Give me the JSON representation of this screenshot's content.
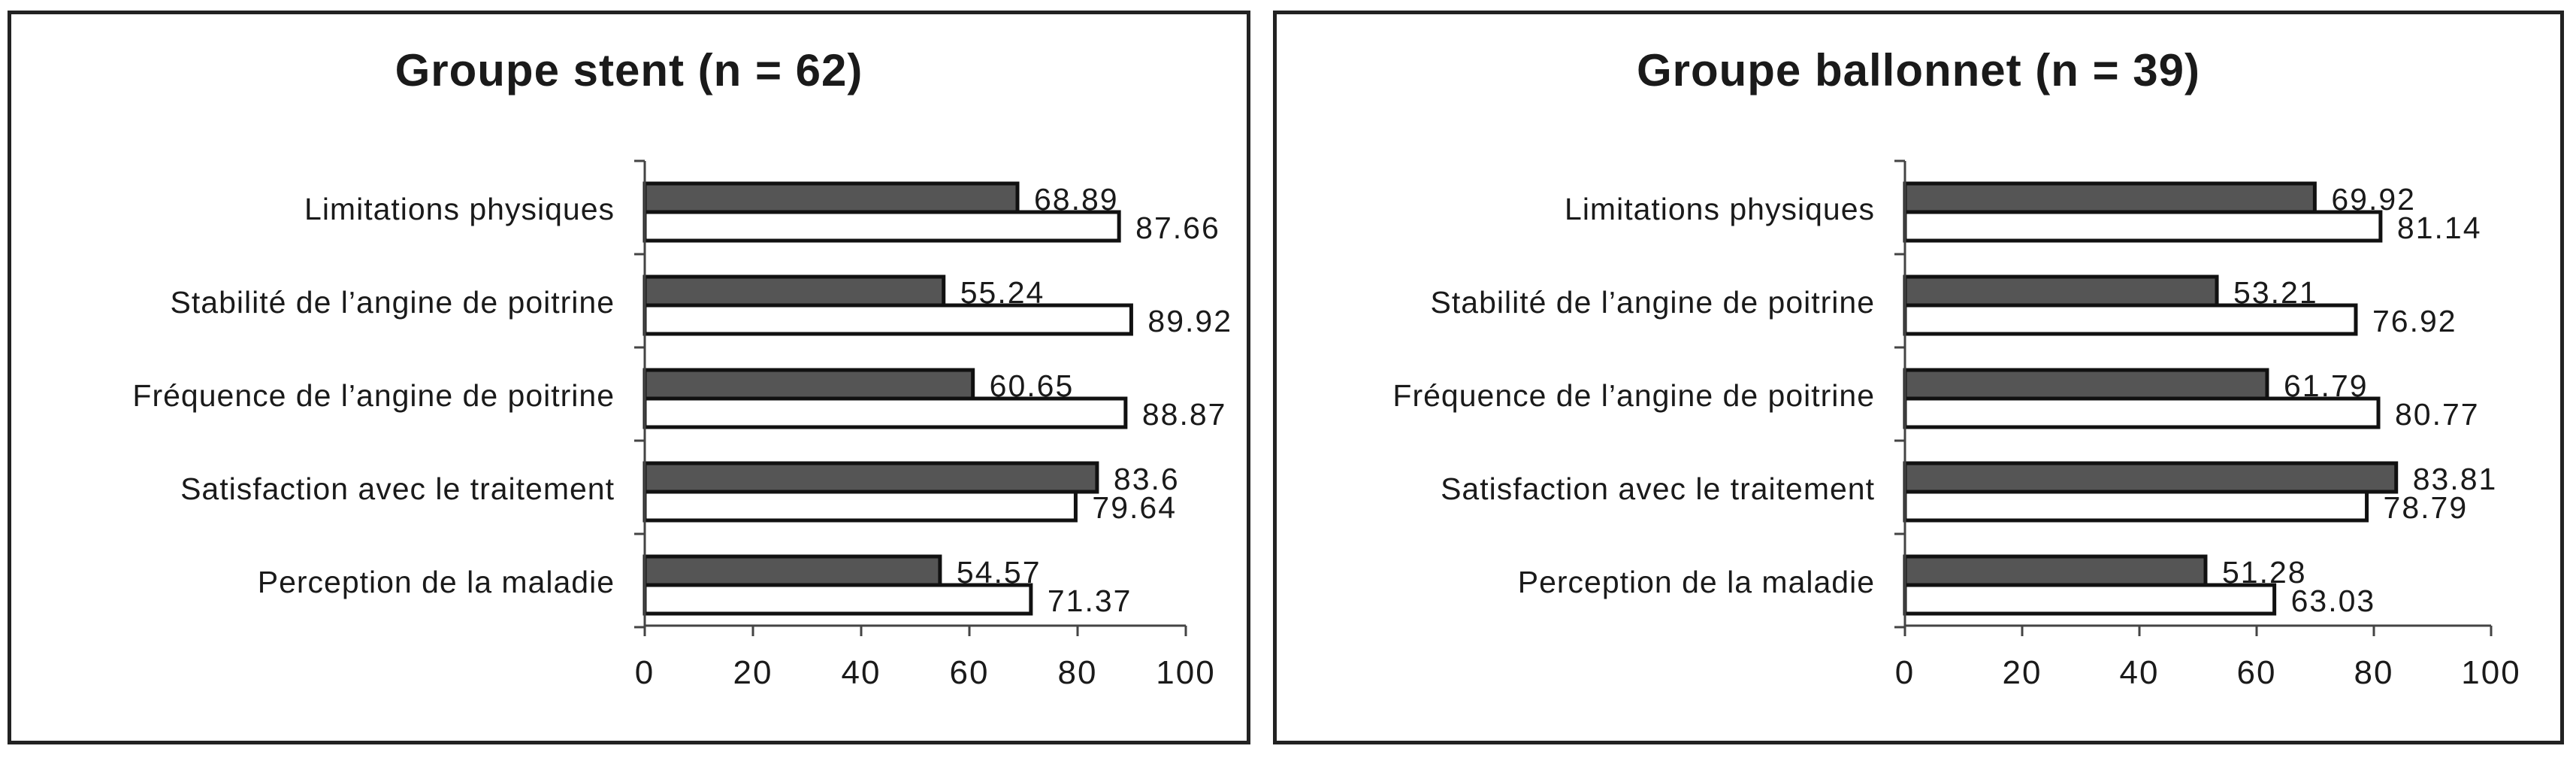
{
  "chart_data": [
    {
      "type": "bar",
      "orientation": "horizontal",
      "title": "Groupe stent (n = 62)",
      "categories": [
        "Limitations physiques",
        "Stabilité de l’angine de poitrine",
        "Fréquence de l’angine de poitrine",
        "Satisfaction avec le traitement",
        "Perception de la maladie"
      ],
      "series": [
        {
          "color": "#555555",
          "values": [
            68.89,
            55.24,
            60.65,
            83.6,
            54.57
          ]
        },
        {
          "color": "#ffffff",
          "values": [
            87.66,
            89.92,
            88.87,
            79.64,
            71.37
          ]
        }
      ],
      "value_labels": [
        [
          "68.89",
          "55.24",
          "60.65",
          "83.6",
          "54.57"
        ],
        [
          "87.66",
          "89.92",
          "88.87",
          "79.64",
          "71.37"
        ]
      ],
      "xlim": [
        0,
        100
      ],
      "xticks": [
        "0",
        "20",
        "40",
        "60",
        "80",
        "100"
      ],
      "grid": false,
      "legend": "none"
    },
    {
      "type": "bar",
      "orientation": "horizontal",
      "title": "Groupe ballonnet (n = 39)",
      "categories": [
        "Limitations physiques",
        "Stabilité de l’angine de poitrine",
        "Fréquence de l’angine de poitrine",
        "Satisfaction avec le traitement",
        "Perception de la maladie"
      ],
      "series": [
        {
          "color": "#555555",
          "values": [
            69.92,
            53.21,
            61.79,
            83.81,
            51.28
          ]
        },
        {
          "color": "#ffffff",
          "values": [
            81.14,
            76.92,
            80.77,
            78.79,
            63.03
          ]
        }
      ],
      "value_labels": [
        [
          "69.92",
          "53.21",
          "61.79",
          "83.81",
          "51.28"
        ],
        [
          "81.14",
          "76.92",
          "80.77",
          "78.79",
          "63.03"
        ]
      ],
      "xlim": [
        0,
        100
      ],
      "xticks": [
        "0",
        "20",
        "40",
        "60",
        "80",
        "100"
      ],
      "grid": false,
      "legend": "none"
    }
  ]
}
